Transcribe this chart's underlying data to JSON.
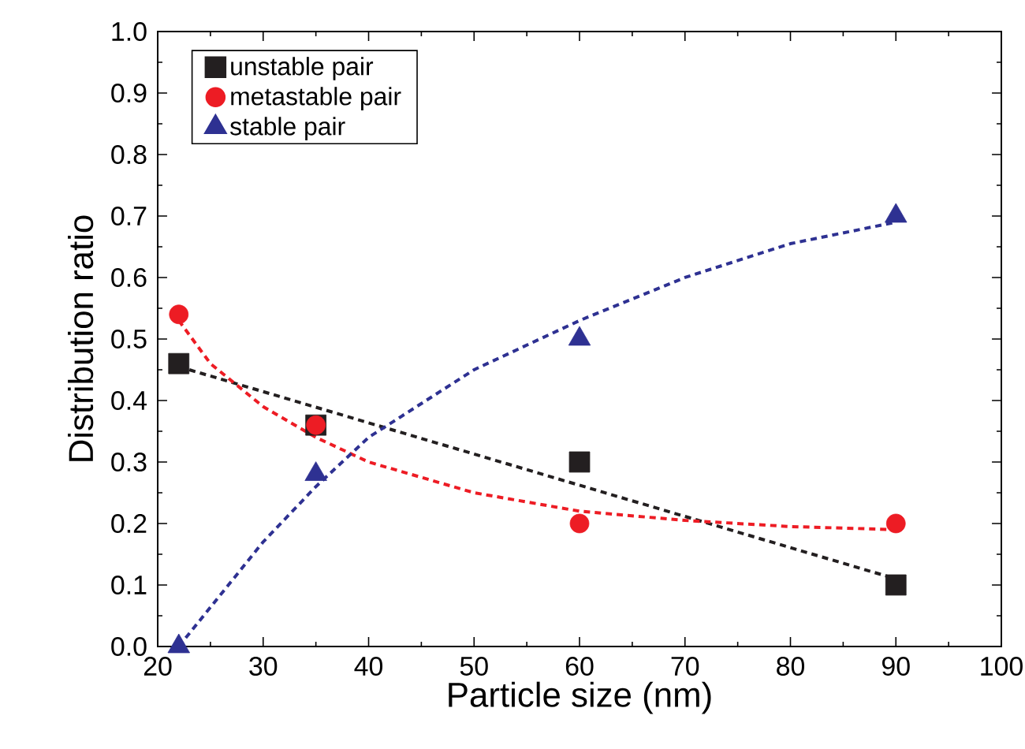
{
  "chart_data": {
    "type": "scatter",
    "xlabel": "Particle size (nm)",
    "ylabel": "Distribution ratio",
    "xlim": [
      20,
      100
    ],
    "ylim": [
      0,
      1
    ],
    "xticks": [
      20,
      30,
      40,
      50,
      60,
      70,
      80,
      90,
      100
    ],
    "yticks": [
      {
        "value": 0,
        "label": "0.0"
      },
      {
        "value": 0.1,
        "label": "0.1"
      },
      {
        "value": 0.2,
        "label": "0.2"
      },
      {
        "value": 0.3,
        "label": "0.3"
      },
      {
        "value": 0.4,
        "label": "0.4"
      },
      {
        "value": 0.5,
        "label": "0.5"
      },
      {
        "value": 0.6,
        "label": "0.6"
      },
      {
        "value": 0.7,
        "label": "0.7"
      },
      {
        "value": 0.8,
        "label": "0.8"
      },
      {
        "value": 0.9,
        "label": "0.9"
      },
      {
        "value": 1,
        "label": "1.0"
      }
    ],
    "grid": false,
    "legend": "top left",
    "series": [
      {
        "name": "unstable pair",
        "color": "#231f20",
        "marker": "square",
        "x": [
          22,
          35,
          60,
          90
        ],
        "values": [
          0.46,
          0.36,
          0.3,
          0.1
        ]
      },
      {
        "name": "metastable pair",
        "color": "#ed1c24",
        "marker": "circle",
        "x": [
          22,
          35,
          60,
          90
        ],
        "values": [
          0.54,
          0.36,
          0.2,
          0.2
        ]
      },
      {
        "name": "stable pair",
        "color": "#2e3192",
        "marker": "triangle",
        "x": [
          22,
          35,
          60,
          90
        ],
        "values": [
          0.0,
          0.28,
          0.5,
          0.7
        ]
      },
      {
        "type": "line",
        "color": "#231f20",
        "line_style": "dashed",
        "marker": "none",
        "x": [
          22,
          90
        ],
        "values": [
          0.455,
          0.11
        ]
      },
      {
        "type": "line",
        "color": "#ed1c24",
        "line_style": "dashed",
        "marker": "none",
        "x": [
          22,
          25,
          30,
          35,
          40,
          50,
          60,
          70,
          80,
          90
        ],
        "values": [
          0.53,
          0.46,
          0.39,
          0.34,
          0.3,
          0.25,
          0.22,
          0.205,
          0.195,
          0.19
        ]
      },
      {
        "type": "line",
        "color": "#2e3192",
        "line_style": "dashed",
        "marker": "none",
        "x": [
          22,
          30,
          35,
          40,
          50,
          60,
          70,
          80,
          90
        ],
        "values": [
          0.0,
          0.17,
          0.26,
          0.34,
          0.45,
          0.53,
          0.6,
          0.655,
          0.69
        ]
      }
    ]
  }
}
